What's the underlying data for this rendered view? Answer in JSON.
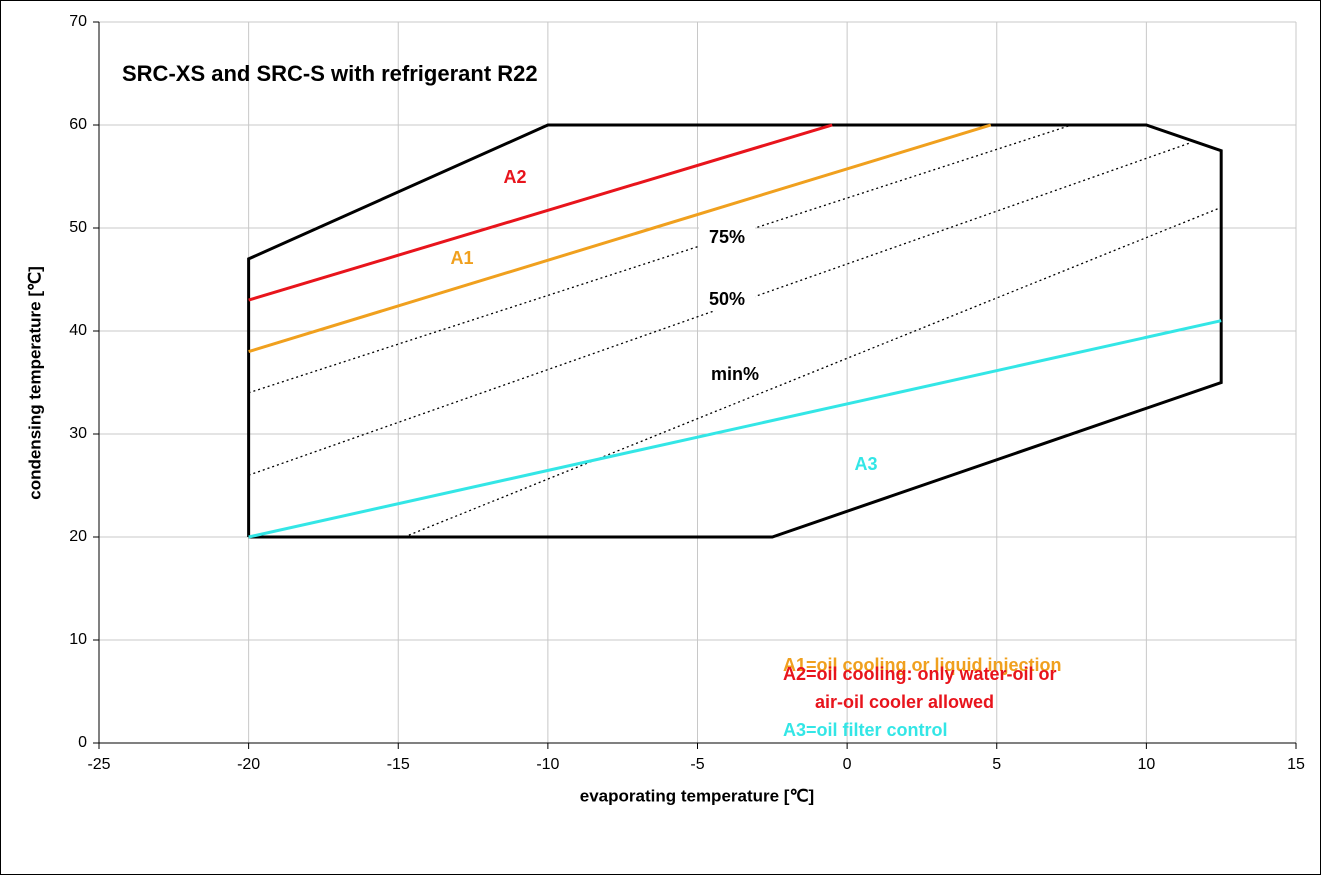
{
  "chart_data": {
    "type": "line",
    "title": "SRC-XS and SRC-S with refrigerant R22",
    "x_label": "evaporating temperature [℃]",
    "y_label": "condensing temperature [℃]",
    "xlim": [
      -25,
      15
    ],
    "xticks": [
      -25,
      -20,
      -15,
      -10,
      -5,
      0,
      5,
      10,
      15
    ],
    "ylim": [
      0,
      70
    ],
    "yticks": [
      0,
      10,
      20,
      30,
      40,
      50,
      60,
      70
    ],
    "grid": true,
    "series": [
      {
        "color": "#000000",
        "x": [
          -20,
          -20,
          -10,
          10,
          12.5,
          12.5,
          -2.5,
          -20
        ],
        "values": [
          20,
          47,
          60,
          60,
          57.5,
          35,
          20,
          20
        ]
      },
      {
        "name": "A2",
        "color": "#e8141c",
        "x": [
          -20,
          -0.5
        ],
        "values": [
          43,
          60
        ]
      },
      {
        "name": "A1",
        "color": "#f0a01e",
        "x": [
          -20,
          4.8
        ],
        "values": [
          38,
          60
        ]
      },
      {
        "name": "75%",
        "color": "#000000",
        "style": "dotted",
        "x": [
          -20,
          7.5
        ],
        "values": [
          34,
          60
        ]
      },
      {
        "name": "50%",
        "color": "#000000",
        "style": "dotted",
        "x": [
          -20,
          11.5
        ],
        "values": [
          26,
          58.3
        ]
      },
      {
        "name": "min%",
        "color": "#000000",
        "style": "dotted",
        "x": [
          -14.8,
          12.5
        ],
        "values": [
          20,
          52
        ]
      },
      {
        "name": "A3",
        "color": "#33e6e6",
        "x": [
          -20,
          12.5
        ],
        "values": [
          20,
          41
        ]
      }
    ],
    "annotations": [
      {
        "text": "A1=oil cooling or liquid injection",
        "color": "#f0a01e"
      },
      {
        "text": "A2=oil cooling: only water-oil or",
        "color": "#e8141c"
      },
      {
        "text": "air-oil cooler allowed",
        "color": "#e8141c"
      },
      {
        "text": "A3=oil filter control",
        "color": "#33e6e6"
      }
    ]
  }
}
